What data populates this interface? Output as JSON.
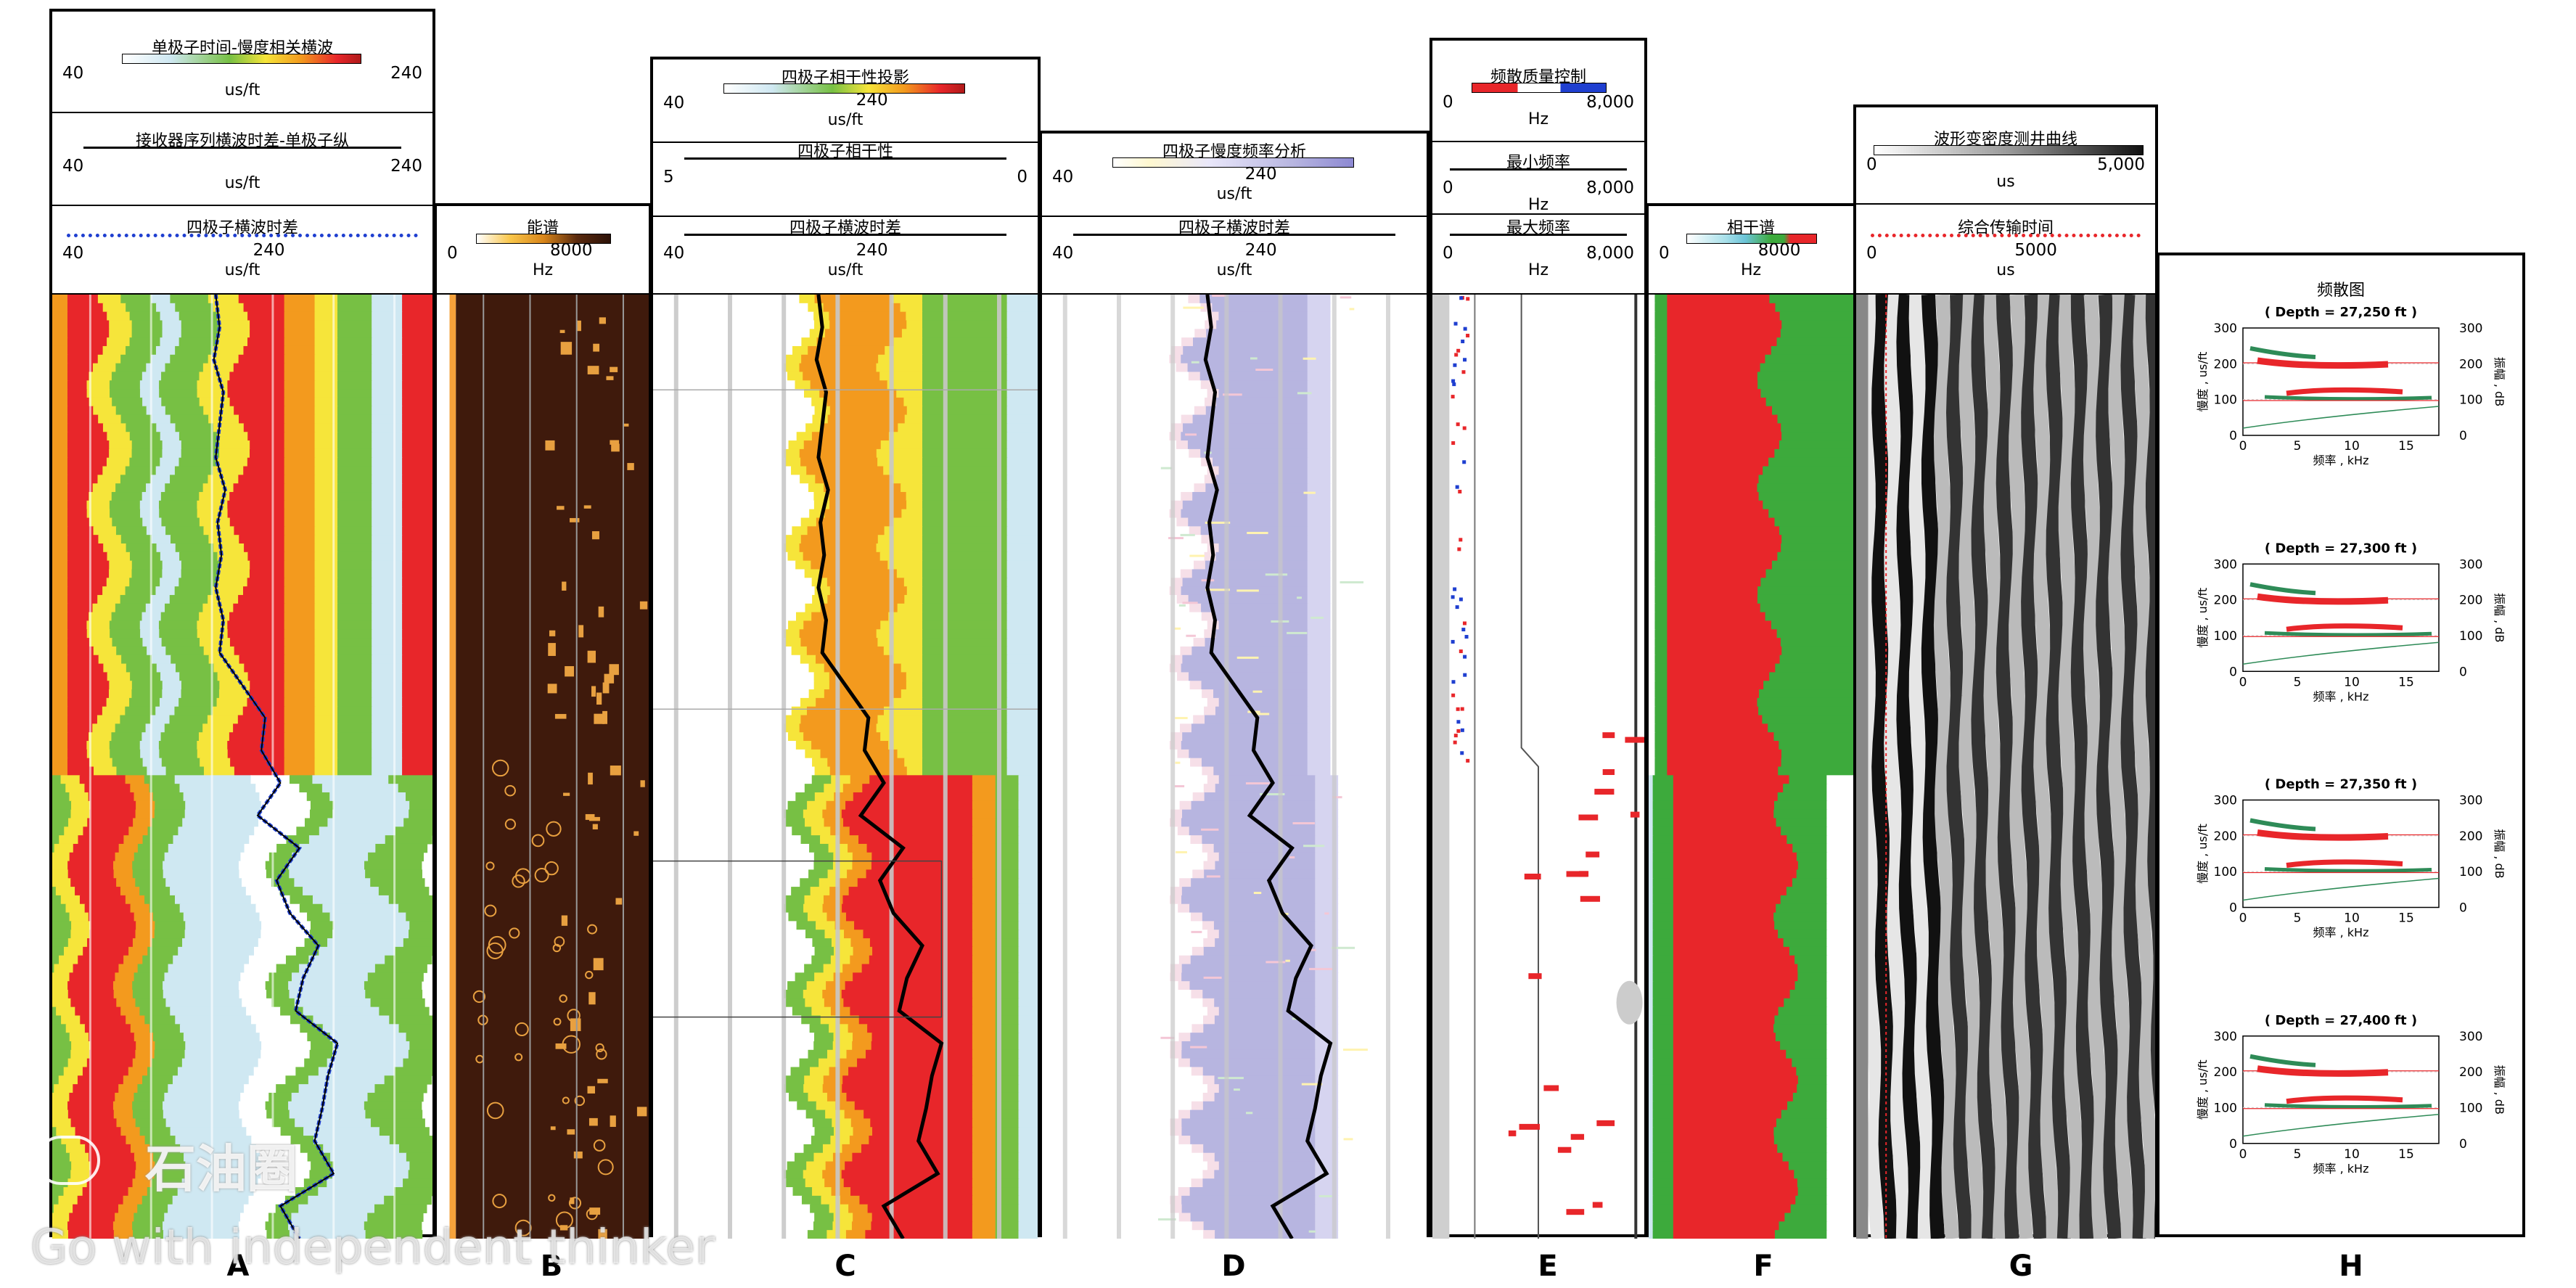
{
  "tracks": [
    {
      "id": "A",
      "headers": [
        {
          "title": "单极子时间-慢度相关横波",
          "lo": "40",
          "hi": "240",
          "unit": "us/ft"
        },
        {
          "title": "接收器序列横波时差-单极子纵",
          "lo": "40",
          "hi": "240",
          "unit": "us/ft"
        },
        {
          "title": "四极子横波时差",
          "lo": "40",
          "mid": "240",
          "unit": "us/ft"
        }
      ]
    },
    {
      "id": "B",
      "headers": [
        {
          "title": "能谱",
          "lo": "0",
          "mid": "8000",
          "unit": "Hz"
        }
      ]
    },
    {
      "id": "C",
      "headers": [
        {
          "title": "四极子相干性投影",
          "lo": "40",
          "mid": "240",
          "unit": "us/ft"
        },
        {
          "title": "四极子相干性",
          "lo": "5",
          "hi": "0"
        },
        {
          "title": "四极子横波时差",
          "lo": "40",
          "mid": "240",
          "unit": "us/ft"
        }
      ]
    },
    {
      "id": "D",
      "headers": [
        {
          "title": "四极子慢度频率分析",
          "lo": "40",
          "mid": "240",
          "unit": "us/ft"
        },
        {
          "title": "四极子横波时差",
          "lo": "40",
          "mid": "240",
          "unit": "us/ft"
        }
      ]
    },
    {
      "id": "E",
      "headers": [
        {
          "title": "频散质量控制",
          "lo": "0",
          "hi": "8,000",
          "unit": "Hz"
        },
        {
          "title": "最小频率",
          "lo": "0",
          "hi": "8,000",
          "unit": "Hz"
        },
        {
          "title": "最大频率",
          "lo": "0",
          "hi": "8,000",
          "unit": "Hz"
        }
      ]
    },
    {
      "id": "F",
      "headers": [
        {
          "title": "相干谱",
          "lo": "0",
          "mid": "8000",
          "unit": "Hz"
        }
      ]
    },
    {
      "id": "G",
      "headers": [
        {
          "title": "波形变密度测井曲线",
          "lo": "0",
          "hi": "5,000",
          "unit": "us"
        },
        {
          "title": "综合传输时间",
          "lo": "0",
          "mid": "5000",
          "unit": "us"
        }
      ]
    },
    {
      "id": "H",
      "headers": [
        {
          "title": "频散图"
        }
      ]
    }
  ],
  "track_labels": [
    "A",
    "B",
    "C",
    "D",
    "E",
    "F",
    "G",
    "H"
  ],
  "chart_data": {
    "type": "heatmap",
    "title": "",
    "dispersion_plots": [
      {
        "depth_label": "( Depth = 27,250 ft )"
      },
      {
        "depth_label": "( Depth = 27,300 ft )"
      },
      {
        "depth_label": "( Depth = 27,350 ft )"
      },
      {
        "depth_label": "( Depth = 27,400 ft )"
      }
    ],
    "dispersion_axes": {
      "xlabel": "频率 , kHz",
      "ylabel_left": "慢度 , us/ft",
      "ylabel_right": "振幅 , dB",
      "x_ticks": [
        "0",
        "5",
        "10",
        "15"
      ],
      "y_ticks_left": [
        "0",
        "100",
        "200",
        "300"
      ],
      "y_ticks_right": [
        "0",
        "100",
        "200",
        "300"
      ]
    },
    "quadrupole_shear_slowness_curve_uslft": [
      126,
      128,
      125,
      130,
      128,
      126,
      131,
      127,
      129,
      126,
      130,
      128,
      140,
      152,
      150,
      160,
      148,
      170,
      158,
      165,
      180,
      172,
      168,
      190,
      185,
      182,
      178,
      188,
      160,
      170
    ],
    "colors": {
      "red": "#e8262a",
      "orange": "#f39a1e",
      "yellow": "#f6e53a",
      "green": "#77c044",
      "lightblue": "#cfe8f2",
      "darkbrown": "#3f1a0c",
      "purple": "#b7b5e0",
      "spec_green": "#3daa3c"
    }
  },
  "watermark": {
    "brand": "石油圈",
    "slogan": "Go with independent thinker"
  }
}
